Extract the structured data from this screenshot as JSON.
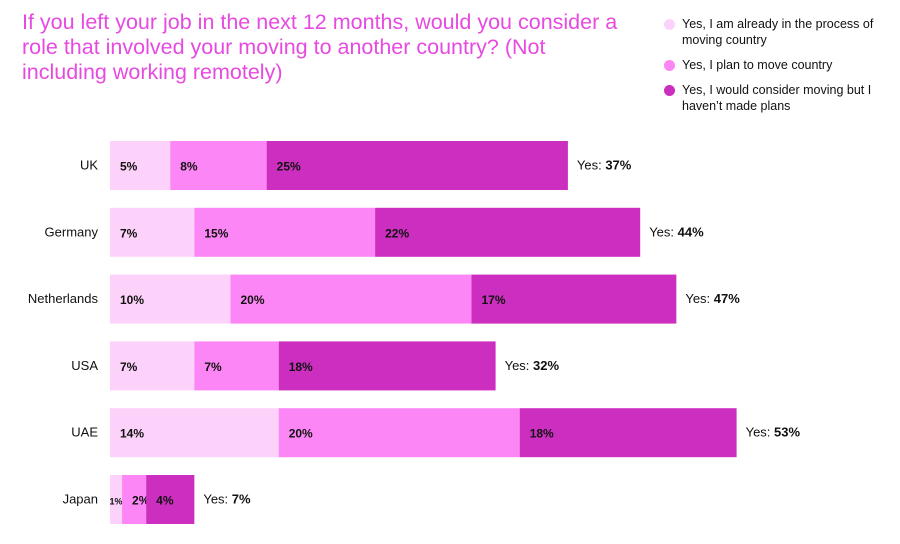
{
  "title": "If you left your job in the next 12 months, would you consider a role that involved your moving to another country? (Not including working remotely)",
  "colors": {
    "title": "#e64ae0",
    "series": [
      "#fdd2fa",
      "#fc86f5",
      "#cc2fbf"
    ]
  },
  "legend": [
    {
      "label": "Yes, I am already in the process of moving country"
    },
    {
      "label": "Yes, I plan to move country"
    },
    {
      "label": "Yes, I would consider moving but I haven’t made plans"
    }
  ],
  "chart_data": {
    "type": "bar",
    "orientation": "horizontal",
    "stacked": true,
    "categories": [
      "UK",
      "Germany",
      "Netherlands",
      "USA",
      "UAE",
      "Japan"
    ],
    "series": [
      {
        "name": "Yes, I am already in the process of moving country",
        "values": [
          5,
          7,
          10,
          7,
          14,
          1
        ]
      },
      {
        "name": "Yes, I plan to move country",
        "values": [
          8,
          15,
          20,
          7,
          20,
          2
        ]
      },
      {
        "name": "Yes, I would consider moving but I haven’t made plans",
        "values": [
          25,
          22,
          17,
          18,
          18,
          4
        ]
      }
    ],
    "segment_labels": [
      [
        "5%",
        "8%",
        "25%"
      ],
      [
        "7%",
        "15%",
        "22%"
      ],
      [
        "10%",
        "20%",
        "17%"
      ],
      [
        "7%",
        "7%",
        "18%"
      ],
      [
        "14%",
        "20%",
        "18%"
      ],
      [
        "1%",
        "2%",
        "4%"
      ]
    ],
    "totals_prefix": "Yes:",
    "totals": [
      "37%",
      "44%",
      "47%",
      "32%",
      "53%",
      "7%"
    ]
  }
}
